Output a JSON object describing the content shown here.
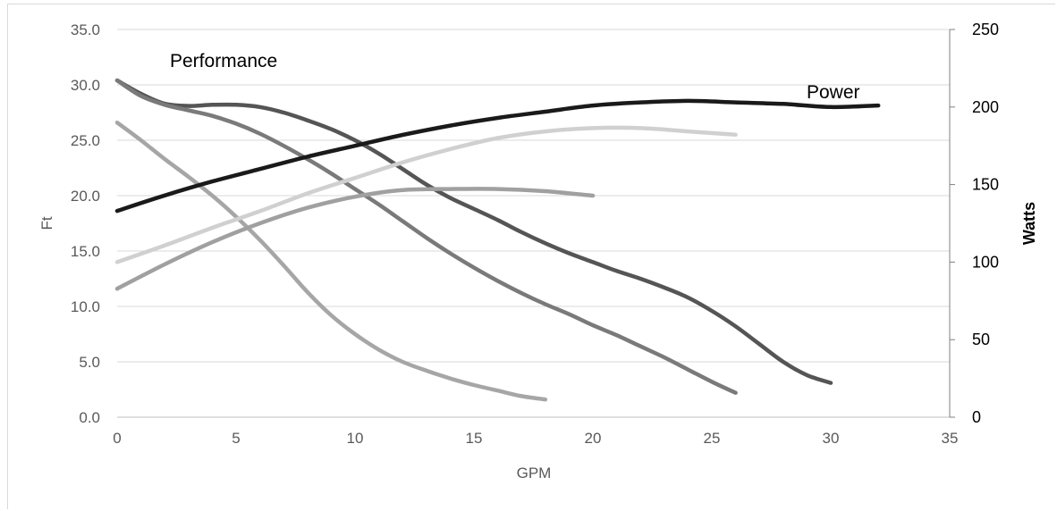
{
  "chart_data": {
    "type": "line",
    "title": "",
    "xlabel": "GPM",
    "ylabel": "Ft",
    "y2label": "Watts",
    "xlim": [
      0,
      35
    ],
    "ylim": [
      0,
      35
    ],
    "y2lim": [
      0,
      250
    ],
    "x_ticks": [
      "0",
      "5",
      "10",
      "15",
      "20",
      "25",
      "30",
      "35"
    ],
    "y_ticks": [
      "0.0",
      "5.0",
      "10.0",
      "15.0",
      "20.0",
      "25.0",
      "30.0",
      "35.0"
    ],
    "y2_ticks": [
      "0",
      "50",
      "100",
      "150",
      "200",
      "250"
    ],
    "grid": true,
    "annotations": [
      "Performance",
      "Power"
    ],
    "series": [
      {
        "axis": "left",
        "color": "#555555",
        "points": [
          [
            0,
            30.4
          ],
          [
            1,
            29.2
          ],
          [
            2,
            28.3
          ],
          [
            3,
            28.1
          ],
          [
            4,
            28.2
          ],
          [
            5,
            28.2
          ],
          [
            6,
            28.0
          ],
          [
            7,
            27.5
          ],
          [
            8,
            26.8
          ],
          [
            9,
            26.0
          ],
          [
            10,
            25.0
          ],
          [
            11,
            23.8
          ],
          [
            12,
            22.4
          ],
          [
            13,
            21.0
          ],
          [
            14,
            19.8
          ],
          [
            15,
            18.8
          ],
          [
            16,
            17.8
          ],
          [
            17,
            16.7
          ],
          [
            18,
            15.7
          ],
          [
            19,
            14.8
          ],
          [
            20,
            14.0
          ],
          [
            21,
            13.2
          ],
          [
            22,
            12.5
          ],
          [
            23,
            11.7
          ],
          [
            24,
            10.8
          ],
          [
            25,
            9.6
          ],
          [
            26,
            8.2
          ],
          [
            27,
            6.6
          ],
          [
            28,
            5.0
          ],
          [
            29,
            3.8
          ],
          [
            30,
            3.1
          ]
        ]
      },
      {
        "axis": "left",
        "color": "#7a7a7a",
        "points": [
          [
            0,
            30.4
          ],
          [
            1,
            29.0
          ],
          [
            2,
            28.2
          ],
          [
            3,
            27.7
          ],
          [
            4,
            27.2
          ],
          [
            5,
            26.5
          ],
          [
            6,
            25.6
          ],
          [
            7,
            24.5
          ],
          [
            8,
            23.3
          ],
          [
            9,
            22.0
          ],
          [
            10,
            20.6
          ],
          [
            11,
            19.2
          ],
          [
            12,
            17.7
          ],
          [
            13,
            16.2
          ],
          [
            14,
            14.8
          ],
          [
            15,
            13.5
          ],
          [
            16,
            12.3
          ],
          [
            17,
            11.2
          ],
          [
            18,
            10.2
          ],
          [
            19,
            9.3
          ],
          [
            20,
            8.3
          ],
          [
            21,
            7.4
          ],
          [
            22,
            6.4
          ],
          [
            23,
            5.4
          ],
          [
            24,
            4.3
          ],
          [
            25,
            3.2
          ],
          [
            26,
            2.2
          ]
        ]
      },
      {
        "axis": "left",
        "color": "#a6a6a6",
        "points": [
          [
            0,
            26.6
          ],
          [
            1,
            25.0
          ],
          [
            2,
            23.3
          ],
          [
            3,
            21.7
          ],
          [
            4,
            20.0
          ],
          [
            5,
            18.1
          ],
          [
            6,
            16.0
          ],
          [
            7,
            13.7
          ],
          [
            8,
            11.3
          ],
          [
            9,
            9.2
          ],
          [
            10,
            7.5
          ],
          [
            11,
            6.1
          ],
          [
            12,
            5.0
          ],
          [
            13,
            4.2
          ],
          [
            14,
            3.5
          ],
          [
            15,
            2.9
          ],
          [
            16,
            2.4
          ],
          [
            17,
            1.9
          ],
          [
            18,
            1.6
          ]
        ]
      },
      {
        "axis": "left",
        "color": "#a0a0a0",
        "points": [
          [
            0,
            11.6
          ],
          [
            2,
            13.8
          ],
          [
            4,
            15.8
          ],
          [
            6,
            17.5
          ],
          [
            8,
            18.9
          ],
          [
            10,
            19.9
          ],
          [
            12,
            20.5
          ],
          [
            14,
            20.6
          ],
          [
            16,
            20.6
          ],
          [
            18,
            20.4
          ],
          [
            20,
            20.0
          ]
        ]
      },
      {
        "axis": "left",
        "color": "#d0d0d0",
        "points": [
          [
            0,
            14.0
          ],
          [
            2,
            15.5
          ],
          [
            4,
            17.1
          ],
          [
            6,
            18.6
          ],
          [
            8,
            20.2
          ],
          [
            10,
            21.6
          ],
          [
            12,
            23.0
          ],
          [
            14,
            24.2
          ],
          [
            16,
            25.2
          ],
          [
            18,
            25.8
          ],
          [
            20,
            26.1
          ],
          [
            22,
            26.1
          ],
          [
            24,
            25.8
          ],
          [
            26,
            25.5
          ]
        ]
      },
      {
        "axis": "right",
        "color": "#1a1a1a",
        "points": [
          [
            0,
            133
          ],
          [
            2,
            143
          ],
          [
            4,
            152
          ],
          [
            6,
            160
          ],
          [
            8,
            168
          ],
          [
            10,
            175
          ],
          [
            12,
            182
          ],
          [
            14,
            188
          ],
          [
            16,
            193
          ],
          [
            18,
            197
          ],
          [
            20,
            201
          ],
          [
            22,
            203
          ],
          [
            24,
            204
          ],
          [
            26,
            203
          ],
          [
            28,
            202
          ],
          [
            30,
            200
          ],
          [
            32,
            201
          ]
        ]
      }
    ]
  }
}
